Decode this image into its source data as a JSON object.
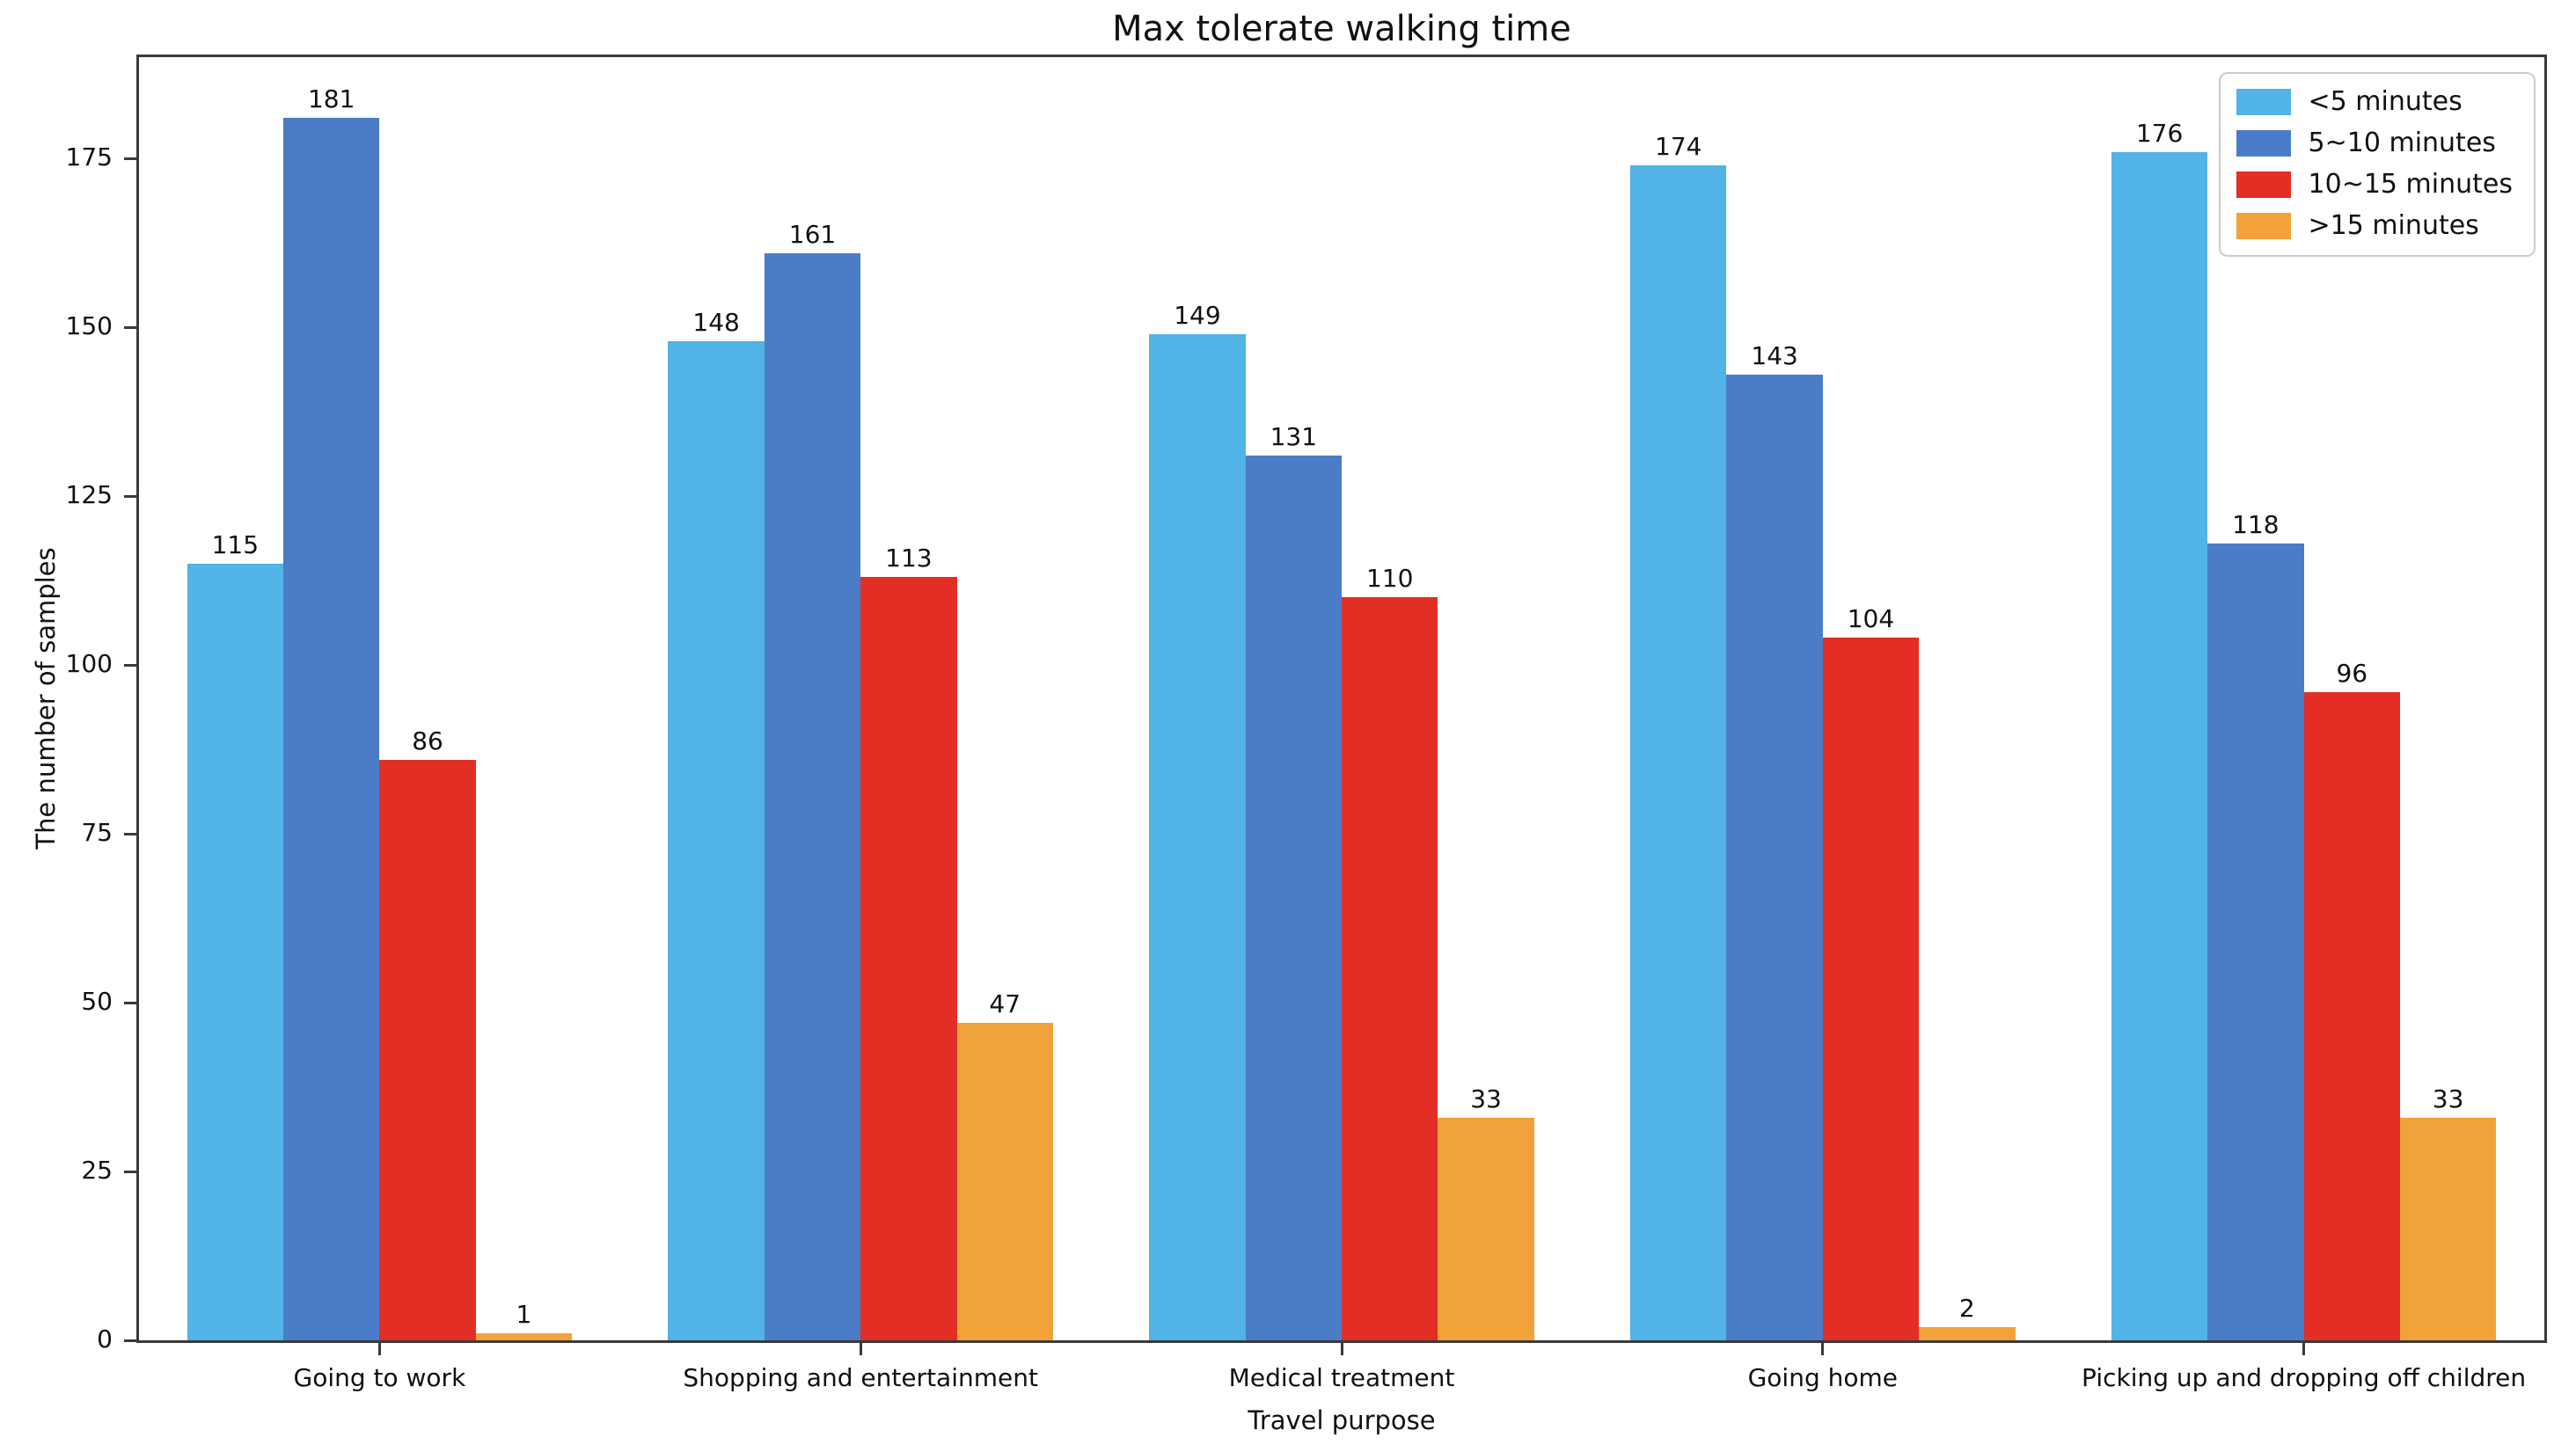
{
  "chart_data": {
    "type": "bar",
    "title": "Max tolerate walking time",
    "xlabel": "Travel purpose",
    "ylabel": "The number of samples",
    "categories": [
      "Going to work",
      "Shopping and entertainment",
      "Medical treatment",
      "Going home",
      "Picking up and dropping off children"
    ],
    "series": [
      {
        "name": "<5 minutes",
        "color": "#52B3E6",
        "values": [
          115,
          148,
          149,
          174,
          176
        ]
      },
      {
        "name": "5~10 minutes",
        "color": "#4A7CC7",
        "values": [
          181,
          161,
          131,
          143,
          118
        ]
      },
      {
        "name": "10~15 minutes",
        "color": "#E22E24",
        "values": [
          86,
          113,
          110,
          104,
          96
        ]
      },
      {
        "name": ">15 minutes",
        "color": "#F2A23A",
        "values": [
          1,
          47,
          33,
          2,
          33
        ]
      }
    ],
    "yticks": [
      0,
      25,
      50,
      75,
      100,
      125,
      150,
      175
    ],
    "ylim": [
      0,
      190
    ],
    "grid": false,
    "legend_position": "upper right",
    "bar_value_labels": true,
    "axis_color": "#3a3a3a"
  }
}
